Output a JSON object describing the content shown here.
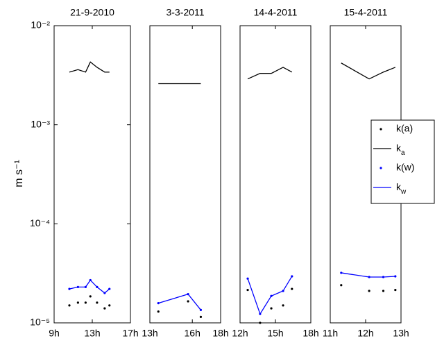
{
  "chart_data": [
    {
      "type": "line",
      "title": "21-9-2010",
      "ylabel": "m s⁻¹",
      "ylog": true,
      "xlim": [
        9,
        17
      ],
      "xticks": [
        {
          "value": 9,
          "label": "9h"
        },
        {
          "value": 13,
          "label": "13h"
        },
        {
          "value": 17,
          "label": "17h"
        }
      ],
      "ylim": [
        1e-05,
        0.01
      ],
      "yticks": [
        {
          "value": 1e-05,
          "label": "10⁻⁵"
        },
        {
          "value": 0.0001,
          "label": "10⁻⁴"
        },
        {
          "value": 0.001,
          "label": "10⁻³"
        },
        {
          "value": 0.01,
          "label": "10⁻²"
        }
      ],
      "x": [
        10.6,
        11.5,
        12.3,
        12.8,
        13.5,
        14.3,
        14.8
      ],
      "series": [
        {
          "color": "#000000",
          "mode": "markers",
          "values": [
            1.5e-05,
            1.6e-05,
            1.6e-05,
            1.85e-05,
            1.6e-05,
            1.4e-05,
            1.5e-05
          ]
        },
        {
          "color": "#000000",
          "mode": "lines",
          "values": [
            0.0034,
            0.0036,
            0.0034,
            0.0043,
            0.0038,
            0.0034,
            0.0034
          ]
        },
        {
          "color": "#0000ff",
          "mode": "markers",
          "values": [
            2.2e-05,
            2.3e-05,
            2.3e-05,
            2.7e-05,
            2.3e-05,
            2e-05,
            2.2e-05
          ]
        },
        {
          "color": "#0000ff",
          "mode": "lines",
          "values": [
            2.2e-05,
            2.3e-05,
            2.3e-05,
            2.7e-05,
            2.3e-05,
            2e-05,
            2.2e-05
          ]
        }
      ]
    },
    {
      "type": "line",
      "title": "3-3-2011",
      "ylog": true,
      "xlim": [
        13,
        18
      ],
      "xticks": [
        {
          "value": 13,
          "label": "13h"
        },
        {
          "value": 16,
          "label": "16h"
        },
        {
          "value": 18,
          "label": "18h"
        }
      ],
      "ylim": [
        1e-05,
        0.01
      ],
      "x": [
        13.6,
        15.7,
        16.6
      ],
      "series": [
        {
          "color": "#000000",
          "mode": "markers",
          "values": [
            1.3e-05,
            1.65e-05,
            1.15e-05
          ]
        },
        {
          "color": "#000000",
          "mode": "lines",
          "values": [
            0.0026,
            0.0026,
            0.0026
          ]
        },
        {
          "color": "#0000ff",
          "mode": "markers",
          "values": [
            1.58e-05,
            1.95e-05,
            1.35e-05
          ]
        },
        {
          "color": "#0000ff",
          "mode": "lines",
          "values": [
            1.58e-05,
            1.95e-05,
            1.35e-05
          ]
        }
      ]
    },
    {
      "type": "line",
      "title": "14-4-2011",
      "ylog": true,
      "xlim": [
        12,
        18
      ],
      "xticks": [
        {
          "value": 12,
          "label": "12h"
        },
        {
          "value": 15,
          "label": "15h"
        },
        {
          "value": 18,
          "label": "18h"
        }
      ],
      "ylim": [
        1e-05,
        0.01
      ],
      "x": [
        12.65,
        13.7,
        14.65,
        15.65,
        16.4
      ],
      "series": [
        {
          "color": "#000000",
          "mode": "markers",
          "values": [
            2.15e-05,
            1e-05,
            1.4e-05,
            1.5e-05,
            2.2e-05
          ]
        },
        {
          "color": "#000000",
          "mode": "lines",
          "values": [
            0.0029,
            0.0033,
            0.0033,
            0.0038,
            0.0034
          ]
        },
        {
          "color": "#0000ff",
          "mode": "markers",
          "values": [
            2.8e-05,
            1.23e-05,
            1.87e-05,
            2.1e-05,
            2.95e-05
          ]
        },
        {
          "color": "#0000ff",
          "mode": "lines",
          "values": [
            2.8e-05,
            1.23e-05,
            1.87e-05,
            2.1e-05,
            2.95e-05
          ]
        }
      ]
    },
    {
      "type": "line",
      "title": "15-4-2011",
      "ylog": true,
      "legend": "right",
      "xlim": [
        11,
        13
      ],
      "xticks": [
        {
          "value": 11,
          "label": "11h"
        },
        {
          "value": 12,
          "label": "12h"
        },
        {
          "value": 13,
          "label": "13h"
        }
      ],
      "ylim": [
        1e-05,
        0.01
      ],
      "x": [
        11.31,
        12.1,
        12.5,
        12.84
      ],
      "series": [
        {
          "name": "k(a)",
          "color": "#000000",
          "mode": "markers",
          "values": [
            2.4e-05,
            2.1e-05,
            2.1e-05,
            2.15e-05
          ]
        },
        {
          "name": "k_a",
          "color": "#000000",
          "mode": "lines",
          "values": [
            0.0042,
            0.0029,
            0.0034,
            0.0038
          ]
        },
        {
          "name": "k(w)",
          "color": "#0000ff",
          "mode": "markers",
          "values": [
            3.2e-05,
            2.9e-05,
            2.9e-05,
            2.95e-05
          ]
        },
        {
          "name": "k_w",
          "color": "#0000ff",
          "mode": "lines",
          "values": [
            3.2e-05,
            2.9e-05,
            2.9e-05,
            2.95e-05
          ]
        }
      ]
    }
  ]
}
